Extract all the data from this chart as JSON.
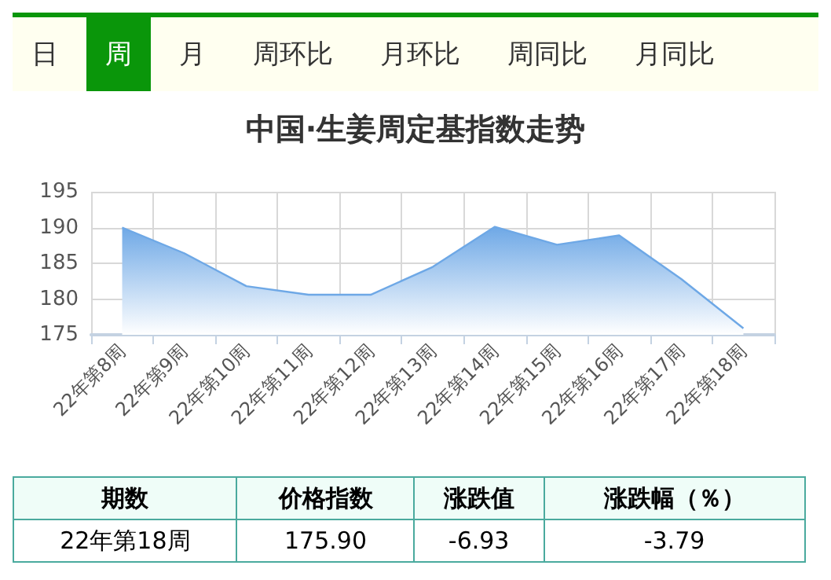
{
  "chart_data": {
    "type": "area",
    "title": "中国·生姜周定基指数走势",
    "categories": [
      "22年第8周",
      "22年第9周",
      "22年第10周",
      "22年第11周",
      "22年第12周",
      "22年第13周",
      "22年第14周",
      "22年第15周",
      "22年第16周",
      "22年第17周",
      "22年第18周"
    ],
    "series": [
      {
        "color": "#6ea8e6",
        "values": [
          190.0,
          186.4,
          181.8,
          180.6,
          180.6,
          184.5,
          190.1,
          187.6,
          188.9,
          182.8,
          175.9
        ]
      }
    ],
    "ylim": [
      175,
      195
    ],
    "yticks": [
      175,
      180,
      185,
      190,
      195
    ],
    "grid": true,
    "marker": "none",
    "annotations": [
      "日",
      "周",
      "月",
      "周环比",
      "月环比",
      "周同比",
      "月同比",
      "期数",
      "价格指数",
      "涨跌值",
      "涨跌幅（％）",
      "22年第18周",
      "175.90",
      "-6.93",
      "-3.79"
    ]
  }
}
